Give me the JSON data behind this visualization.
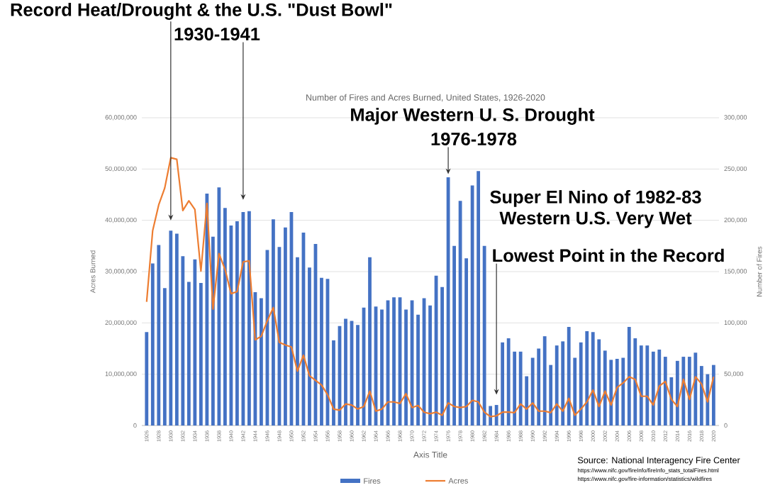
{
  "chart_data": {
    "type": "bar",
    "title": "Number of Fires and Acres Burned, United States, 1926-2020",
    "xlabel": "Axis Title",
    "ylabel": "Acres Burned",
    "y2label": "Number of Fires",
    "categories": [
      "1926",
      null,
      "1928",
      null,
      "1930",
      null,
      "1932",
      null,
      "1934",
      null,
      "1936",
      null,
      "1938",
      null,
      "1940",
      null,
      "1942",
      null,
      "1944",
      null,
      "1946",
      null,
      "1948",
      null,
      "1950",
      null,
      "1952",
      null,
      "1954",
      null,
      "1956",
      null,
      "1958",
      null,
      "1960",
      null,
      "1962",
      null,
      "1964",
      null,
      "1966",
      null,
      "1968",
      null,
      "1970",
      null,
      "1972",
      null,
      "1974",
      null,
      "1976",
      null,
      "1978",
      null,
      "1980",
      null,
      "1982",
      null,
      "1984",
      null,
      "1986",
      null,
      "1988",
      null,
      "1990",
      null,
      "1992",
      null,
      "1994",
      null,
      "1996",
      null,
      "1998",
      null,
      "2000",
      null,
      "2002",
      null,
      "2004",
      null,
      "2006",
      null,
      "2008",
      null,
      "2010",
      null,
      "2012",
      null,
      "2014",
      null,
      "2016",
      null,
      "2018",
      null,
      "2020"
    ],
    "series": [
      {
        "name": "Fires",
        "type": "bar",
        "axis": "y2",
        "color": "#4472c4",
        "values": [
          91000,
          158000,
          176000,
          134000,
          190000,
          187000,
          165000,
          140000,
          162000,
          139000,
          226000,
          184000,
          232000,
          212000,
          195000,
          199000,
          208000,
          209000,
          130000,
          124000,
          171000,
          201000,
          174000,
          193000,
          208000,
          164000,
          188000,
          154000,
          177000,
          144000,
          143000,
          83000,
          97000,
          104000,
          102000,
          98000,
          115000,
          164000,
          116000,
          113000,
          122000,
          125000,
          125000,
          113000,
          122000,
          108000,
          124000,
          117000,
          146000,
          135000,
          242000,
          175000,
          219000,
          163000,
          234000,
          248000,
          175000,
          19000,
          20000,
          81000,
          85000,
          72000,
          72000,
          48000,
          66000,
          75000,
          87000,
          59000,
          78000,
          82000,
          96000,
          66000,
          81000,
          92000,
          91000,
          84000,
          73000,
          64000,
          65000,
          66000,
          96000,
          85000,
          78000,
          78000,
          72000,
          74000,
          67000,
          47000,
          63000,
          67000,
          67000,
          71000,
          58000,
          50000,
          59000
        ]
      },
      {
        "name": "Acres",
        "type": "line",
        "color": "#ed7d31",
        "values": [
          24100000,
          38000000,
          43000000,
          46300000,
          52200000,
          51900000,
          41900000,
          43800000,
          42100000,
          30100000,
          43300000,
          22700000,
          33500000,
          30400000,
          25700000,
          26100000,
          31900000,
          32100000,
          16700000,
          17400000,
          20400000,
          23000000,
          16200000,
          15700000,
          15300000,
          10600000,
          13700000,
          9700000,
          8800000,
          7900000,
          6000000,
          3200000,
          3000000,
          4200000,
          4000000,
          3200000,
          3700000,
          6700000,
          2800000,
          3200000,
          4600000,
          4600000,
          4300000,
          6200000,
          3500000,
          3900000,
          2600000,
          2300000,
          2600000,
          2000000,
          4400000,
          3700000,
          3500000,
          3700000,
          4900000,
          4600000,
          2600000,
          1700000,
          1900000,
          2600000,
          2600000,
          2500000,
          4200000,
          3200000,
          4400000,
          2800000,
          2800000,
          2500000,
          4200000,
          2800000,
          5300000,
          2000000,
          3200000,
          4600000,
          6900000,
          3700000,
          6700000,
          4000000,
          7400000,
          8300000,
          9500000,
          9000000,
          5700000,
          5700000,
          4000000,
          7700000,
          8600000,
          5100000,
          3700000,
          9000000,
          5100000,
          9500000,
          8100000,
          4600000,
          9500000
        ]
      }
    ],
    "ylim": [
      0,
      60000000
    ],
    "yticks": [
      {
        "value": 0,
        "label": "0"
      },
      {
        "value": 10000000,
        "label": "10,000,000"
      },
      {
        "value": 20000000,
        "label": "20,000,000"
      },
      {
        "value": 30000000,
        "label": "30,000,000"
      },
      {
        "value": 40000000,
        "label": "40,000,000"
      },
      {
        "value": 50000000,
        "label": "50,000,000"
      },
      {
        "value": 60000000,
        "label": "60,000,000"
      }
    ],
    "y2lim": [
      0,
      300000
    ],
    "y2ticks": [
      {
        "value": 0,
        "label": "0"
      },
      {
        "value": 50000,
        "label": "50,000"
      },
      {
        "value": 100000,
        "label": "100,000"
      },
      {
        "value": 150000,
        "label": "150,000"
      },
      {
        "value": 200000,
        "label": "200,000"
      },
      {
        "value": 250000,
        "label": "250,000"
      },
      {
        "value": 300000,
        "label": "300,000"
      }
    ],
    "grid": "y",
    "legend": "bottom",
    "marker": "none",
    "annotations": [
      {
        "text": "Record Heat/Drought & the U.S. \"Dust Bowl\"",
        "x": "1930",
        "y": 40000000
      },
      {
        "text": "1930-1941",
        "x": "1942",
        "y": 44000000
      },
      "Major Western U. S. Drought",
      {
        "text": "1976-1978",
        "x": "1976",
        "y": 49000000
      },
      "Super El Nino of 1982-83",
      "Western U.S. Very Wet",
      {
        "text": "Lowest Point in the Record",
        "x": "1984",
        "y": 6000000
      },
      "Source: National Interagency Fire Center",
      "https://www.nifc.gov/fireInfo/fireInfo_stats_totalFires.html",
      "https://www.nifc.gov/fire-information/statistics/wildfires"
    ]
  }
}
